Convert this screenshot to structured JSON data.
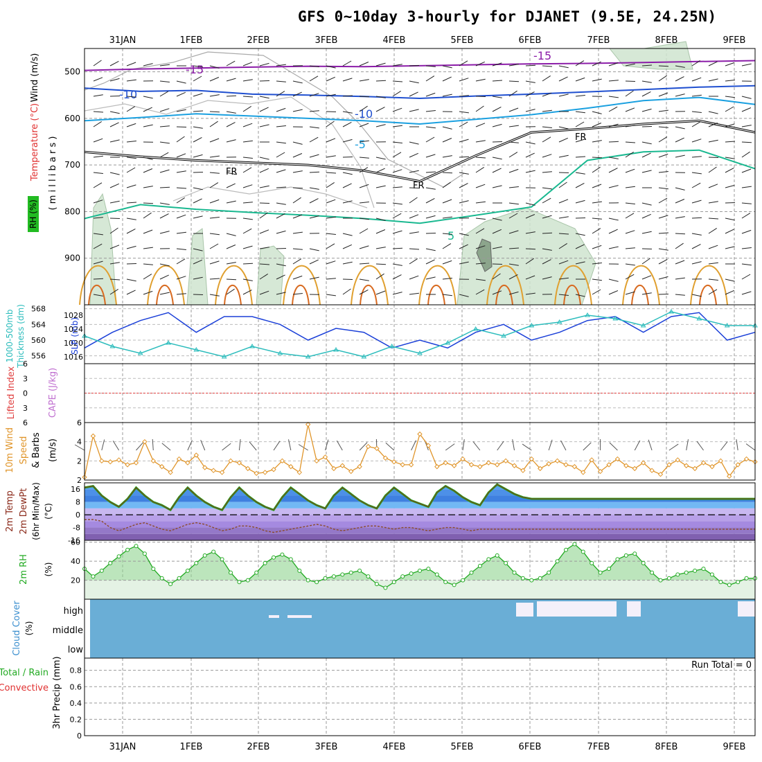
{
  "title": "GFS 0~10day 3-hourly for DJANET (9.5E, 24.25N)",
  "date_labels": [
    "31JAN",
    "1FEB",
    "2FEB",
    "3FEB",
    "4FEB",
    "5FEB",
    "6FEB",
    "7FEB",
    "8FEB",
    "9FEB"
  ],
  "run_total_label": "Run Total = 0",
  "chart_data": {
    "type": "meteogram",
    "time_step_hours": 3,
    "n_steps": 79,
    "panels": [
      {
        "id": "upper-air",
        "type": "contour",
        "ylabel": "(millibars)",
        "side_labels": [
          "Wind (m/s)",
          "Temperature (°C)",
          "RH (%)"
        ],
        "yticks": [
          500,
          600,
          700,
          800,
          900
        ],
        "ylim": [
          1000,
          450
        ],
        "contour_labels": [
          "-15",
          "-10",
          "-5",
          "FR",
          "5"
        ],
        "isotherms": [
          {
            "label": "-15",
            "color": "#8b1ca8",
            "pressure": [
              497,
              494,
              492,
              490,
              488,
              489,
              487,
              485,
              483,
              482,
              480,
              478,
              476
            ]
          },
          {
            "label": "-10",
            "color": "#1f4fd0",
            "pressure": [
              535,
              542,
              540,
              548,
              550,
              553,
              557,
              552,
              548,
              543,
              538,
              533,
              530
            ]
          },
          {
            "label": "-5",
            "color": "#1aa0e0",
            "pressure": [
              605,
              598,
              590,
              595,
              600,
              605,
              612,
              602,
              592,
              578,
              562,
              555,
              570
            ]
          },
          {
            "label": "FR",
            "color": "#000000",
            "pressure": [
              672,
              682,
              690,
              695,
              700,
              712,
              735,
              680,
              630,
              622,
              612,
              605,
              630
            ]
          },
          {
            "label": "5",
            "color": "#19b890",
            "pressure": [
              815,
              785,
              795,
              802,
              808,
              815,
              825,
              808,
              790,
              690,
              672,
              668,
              708
            ]
          }
        ]
      },
      {
        "id": "thickness-slp",
        "type": "line",
        "ylabel_left": "1000-500mb Thickness (dm)",
        "ylabel_right": "SLP (mb)",
        "yticks_left": [
          556,
          560,
          564,
          568
        ],
        "yticks_right": [
          1016,
          1020,
          1024,
          1028
        ],
        "series": [
          {
            "name": "Thickness",
            "color": "#1a3fd8",
            "values": [
              558,
              562,
              565,
              567,
              562,
              566,
              566,
              564,
              560,
              563,
              562,
              558,
              560,
              558,
              562,
              564,
              560,
              562,
              565,
              566,
              562,
              566,
              567,
              560,
              562
            ]
          },
          {
            "name": "SLP",
            "color": "#2bbcbc",
            "values": [
              1022,
              1019,
              1017,
              1020,
              1018,
              1016,
              1019,
              1017,
              1016,
              1018,
              1016,
              1019,
              1017,
              1020,
              1024,
              1022,
              1025,
              1026,
              1028,
              1027,
              1025,
              1029,
              1027,
              1025,
              1025
            ]
          }
        ]
      },
      {
        "id": "cape-li",
        "type": "line",
        "ylabel_left": "Lifted Index",
        "ylabel_right": "CAPE (J/kg)",
        "yticks": [
          6,
          3,
          0,
          -3,
          -6
        ],
        "ytick_labels": [
          "6",
          "3",
          "0",
          "3",
          "6"
        ],
        "values": [
          0
        ]
      },
      {
        "id": "wind10m",
        "type": "line",
        "ylabel": "10m Wind Speed & Barbs (m/s)",
        "yticks": [
          2,
          4,
          6
        ],
        "ylim": [
          0,
          6
        ],
        "color": "#e0952a",
        "values": [
          0.3,
          4.6,
          2.0,
          1.9,
          2.1,
          1.6,
          1.8,
          4.0,
          2.0,
          1.4,
          0.8,
          2.2,
          1.8,
          2.6,
          1.3,
          1.0,
          0.8,
          2.0,
          1.8,
          1.2,
          0.7,
          0.8,
          1.1,
          2.0,
          1.4,
          0.8,
          5.8,
          2.0,
          2.4,
          1.2,
          1.5,
          0.9,
          1.4,
          3.5,
          3.3,
          2.3,
          1.9,
          1.6,
          1.6,
          4.8,
          3.6,
          1.4,
          1.8,
          1.5,
          2.2,
          1.6,
          1.4,
          1.8,
          1.6,
          2.0,
          1.5,
          1.0,
          2.2,
          1.2,
          1.7,
          2.0,
          1.6,
          1.4,
          0.8,
          2.1,
          0.9,
          1.6,
          2.2,
          1.5,
          1.2,
          1.8,
          1.0,
          0.6,
          1.6,
          2.1,
          1.5,
          1.2,
          1.8,
          1.4,
          2.0,
          0.4,
          1.6,
          2.2,
          1.9
        ]
      },
      {
        "id": "temp-dew",
        "type": "area",
        "ylabel": "2m Temp 2m DewPt (6hr Min/Max) (°C)",
        "yticks": [
          -16,
          -8,
          0,
          8,
          16
        ],
        "ylim": [
          -16,
          20
        ],
        "series": [
          {
            "name": "Temp",
            "color": "#22aa22",
            "values": [
              17,
              18,
              12,
              8,
              5,
              10,
              17,
              12,
              8,
              6,
              3,
              11,
              17,
              12,
              8,
              5,
              3,
              11,
              17,
              12,
              8,
              5,
              3,
              11,
              17,
              13,
              9,
              6,
              4,
              12,
              17,
              13,
              9,
              6,
              4,
              12,
              17,
              13,
              9,
              7,
              5,
              14,
              18,
              15,
              11,
              8,
              6,
              14,
              19,
              16,
              13,
              11,
              10,
              10,
              10,
              10,
              10,
              10,
              10,
              10,
              10,
              10,
              10,
              10,
              10,
              10,
              10,
              10,
              10,
              10,
              10,
              10,
              10,
              10,
              10,
              10,
              10,
              10,
              10
            ]
          },
          {
            "name": "DewPt",
            "color": "#8b4b2a",
            "values": [
              -3,
              -3,
              -4,
              -8,
              -10,
              -8,
              -6,
              -5,
              -7,
              -9,
              -10,
              -8,
              -6,
              -5,
              -6,
              -8,
              -10,
              -9,
              -7,
              -7,
              -8,
              -10,
              -11,
              -10,
              -9,
              -8,
              -7,
              -6,
              -7,
              -9,
              -10,
              -9,
              -8,
              -7,
              -7,
              -8,
              -9,
              -8,
              -8,
              -9,
              -10,
              -9,
              -8,
              -8,
              -9,
              -10,
              -9,
              -9,
              -9,
              -9,
              -9,
              -9,
              -9,
              -9,
              -9,
              -9,
              -9,
              -9,
              -9,
              -9,
              -9,
              -9,
              -9,
              -9,
              -9,
              -9,
              -9,
              -9,
              -9,
              -9,
              -9,
              -9,
              -9,
              -9,
              -9,
              -9,
              -9,
              -9,
              -9
            ]
          }
        ]
      },
      {
        "id": "rh2m",
        "type": "area",
        "ylabel": "2m RH (%)",
        "yticks": [
          20,
          40,
          60
        ],
        "ylim": [
          0,
          62
        ],
        "color": "#22aa22",
        "values": [
          32,
          24,
          30,
          38,
          45,
          52,
          56,
          48,
          32,
          22,
          16,
          22,
          30,
          38,
          46,
          50,
          42,
          28,
          18,
          20,
          28,
          38,
          44,
          47,
          42,
          30,
          20,
          18,
          22,
          24,
          26,
          28,
          30,
          24,
          16,
          12,
          18,
          24,
          27,
          30,
          32,
          26,
          18,
          15,
          20,
          28,
          35,
          42,
          46,
          38,
          28,
          22,
          20,
          22,
          28,
          40,
          52,
          58,
          50,
          38,
          28,
          32,
          42,
          46,
          48,
          38,
          28,
          20,
          22,
          26,
          28,
          30,
          32,
          26,
          18,
          15,
          18,
          22,
          22
        ]
      },
      {
        "id": "cloud-cover",
        "type": "heatmap",
        "ylabel": "Cloud Cover (%)",
        "levels": [
          "high",
          "middle",
          "low"
        ],
        "color": "#6aaed6"
      },
      {
        "id": "precip",
        "type": "bar",
        "ylabel": "3hr Precip (mm)",
        "legend": [
          "Total / Rain",
          "Convective"
        ],
        "yticks": [
          0,
          0.2,
          0.4,
          0.6,
          0.8
        ],
        "ylim": [
          0,
          0.95
        ],
        "values": [
          0
        ]
      }
    ]
  }
}
